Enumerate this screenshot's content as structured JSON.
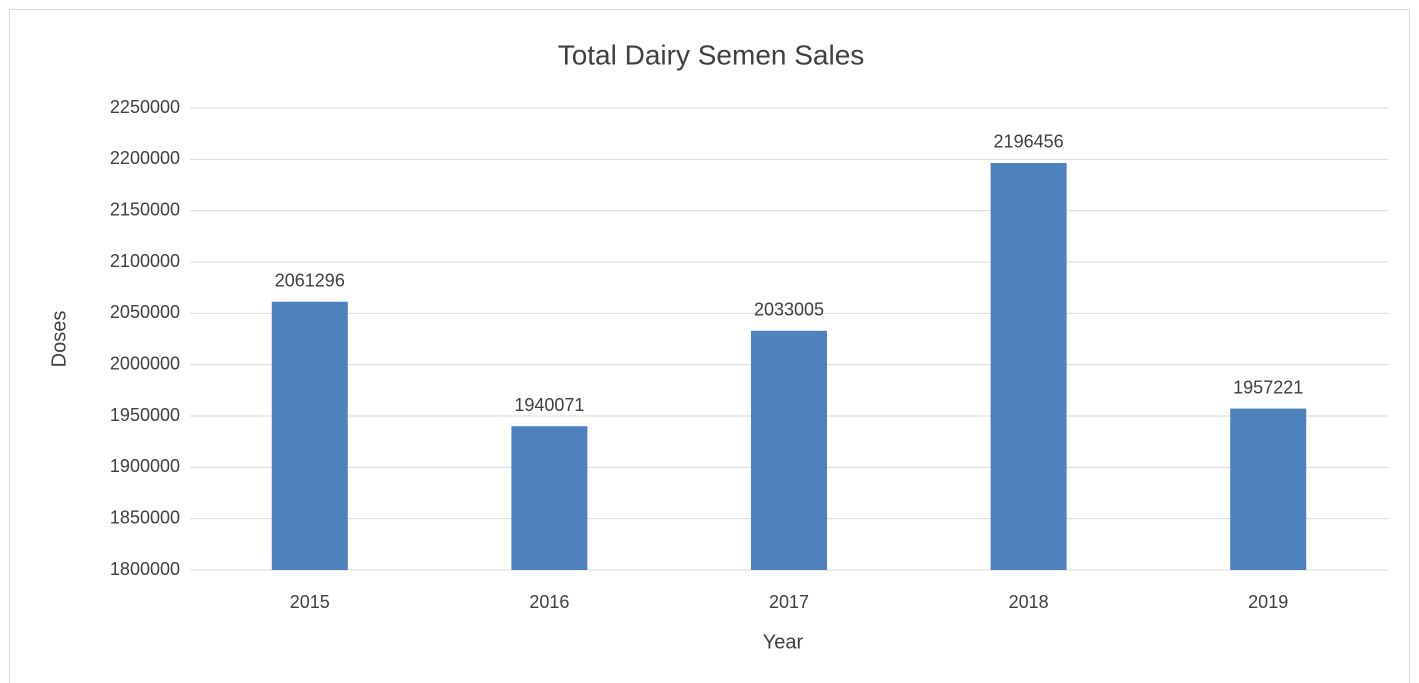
{
  "chart_data": {
    "type": "bar",
    "title": "Total Dairy Semen Sales",
    "x_label": "Year",
    "y_label": "Doses",
    "categories": [
      "2015",
      "2016",
      "2017",
      "2018",
      "2019"
    ],
    "values": [
      2061296,
      1940071,
      2033005,
      2196456,
      1957221
    ],
    "color": "#4f81bd",
    "ylim": [
      1800000,
      2250000
    ],
    "yticks": [
      1800000,
      1850000,
      1900000,
      1950000,
      2000000,
      2050000,
      2100000,
      2150000,
      2200000,
      2250000
    ],
    "grid": true
  }
}
